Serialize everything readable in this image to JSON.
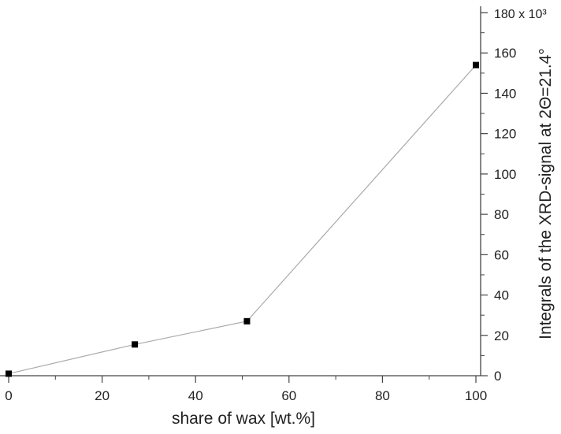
{
  "chart_data": {
    "type": "line",
    "xlabel": "share of wax [wt.%]",
    "ylabel": "Integrals of the XRD-signal at 2Θ=21.4°",
    "y_multiplier_label": "180 x 10³",
    "xlim": [
      0,
      100
    ],
    "ylim": [
      0,
      180
    ],
    "y_unit_scale": 1000,
    "x_ticks": [
      0,
      20,
      40,
      60,
      80,
      100
    ],
    "x_minor_ticks": [
      10,
      30,
      50,
      70,
      90
    ],
    "y_ticks": [
      0,
      20,
      40,
      60,
      80,
      100,
      120,
      140,
      160
    ],
    "y_minor_ticks": [
      10,
      30,
      50,
      70,
      90,
      110,
      130,
      150,
      170
    ],
    "x_tick_labels": [
      "0",
      "20",
      "40",
      "60",
      "80",
      "100"
    ],
    "y_tick_labels": [
      "0",
      "20",
      "40",
      "60",
      "80",
      "100",
      "120",
      "140",
      "160"
    ],
    "grid": false,
    "y_axis_position": "right",
    "series": [
      {
        "x": [
          0,
          27,
          51,
          100
        ],
        "y": [
          1,
          15.5,
          27,
          154
        ],
        "marker": "square",
        "color": "#000000",
        "line_color": "#aaaaaa"
      }
    ]
  }
}
